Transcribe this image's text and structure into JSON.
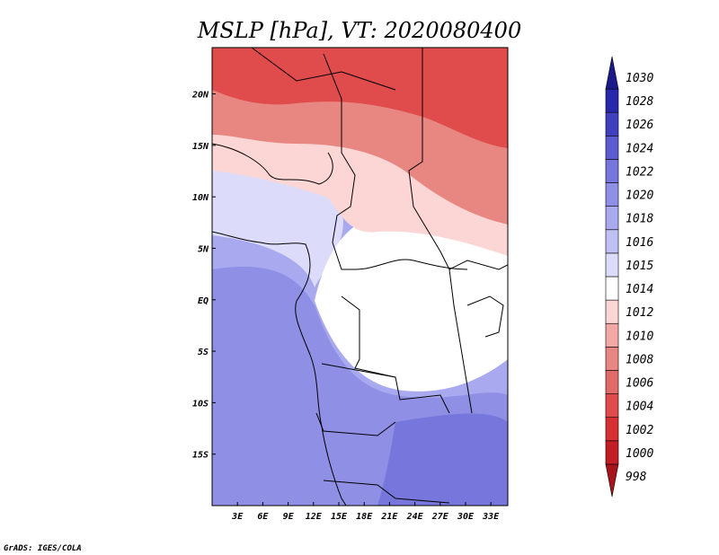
{
  "chart_data": {
    "type": "heatmap",
    "title": "MSLP [hPa], VT: 2020080400",
    "x_ticks": [
      "3E",
      "6E",
      "9E",
      "12E",
      "15E",
      "18E",
      "21E",
      "24E",
      "27E",
      "30E",
      "33E"
    ],
    "y_ticks": [
      "20N",
      "15N",
      "10N",
      "5N",
      "EQ",
      "5S",
      "10S",
      "15S"
    ],
    "x_range_deg": [
      0,
      35
    ],
    "y_range_deg": [
      -20,
      24.5
    ],
    "colorbar": {
      "levels": [
        "998",
        "1000",
        "1002",
        "1004",
        "1006",
        "1008",
        "1010",
        "1012",
        "1014",
        "1015",
        "1016",
        "1018",
        "1020",
        "1022",
        "1024",
        "1026",
        "1028",
        "1030"
      ],
      "colors": [
        "#a8141c",
        "#c21e25",
        "#d63033",
        "#e04b4b",
        "#e26a68",
        "#e88682",
        "#f2a8a4",
        "#fbd6d4",
        "#ffffff",
        "#dcdcfa",
        "#c0c0f5",
        "#a9a9f0",
        "#8f8fe6",
        "#7676dc",
        "#5c5cd0",
        "#4040bf",
        "#2828ad",
        "#1a1a8a"
      ]
    },
    "regions": {
      "north_sahara": "1004",
      "sahel_east": "1008",
      "chad_belt": "1012",
      "congo_basin": "1014",
      "gulf_of_guinea": "1015",
      "atlantic": "1018",
      "south_africa": "1020",
      "southeast_coast": "1022"
    }
  },
  "credit": "GrADS: IGES/COLA"
}
